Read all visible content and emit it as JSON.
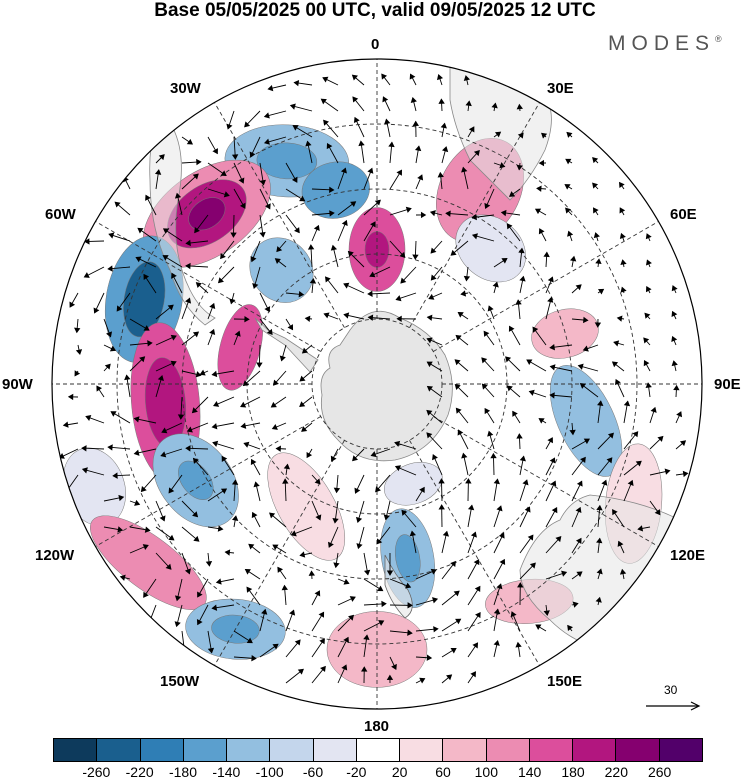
{
  "title": "Base 05/05/2025 00 UTC, valid 09/05/2025 12 UTC",
  "logo": {
    "text": "MODES",
    "mark": "®"
  },
  "longitude_labels": [
    {
      "key": "lon-0",
      "text": "0"
    },
    {
      "key": "lon-30e",
      "text": "30E"
    },
    {
      "key": "lon-60e",
      "text": "60E"
    },
    {
      "key": "lon-90e",
      "text": "90E"
    },
    {
      "key": "lon-120e",
      "text": "120E"
    },
    {
      "key": "lon-150e",
      "text": "150E"
    },
    {
      "key": "lon-180",
      "text": "180"
    },
    {
      "key": "lon-150w",
      "text": "150W"
    },
    {
      "key": "lon-120w",
      "text": "120W"
    },
    {
      "key": "lon-90w",
      "text": "90W"
    },
    {
      "key": "lon-60w",
      "text": "60W"
    },
    {
      "key": "lon-30w",
      "text": "30W"
    }
  ],
  "reference_vector": {
    "label": "30"
  },
  "colorbar": {
    "colors": [
      "#0d3a5c",
      "#1a5f8e",
      "#2f7eb5",
      "#5b9fce",
      "#93bfe0",
      "#c4d6ec",
      "#e3e5f2",
      "#ffffff",
      "#f8dde3",
      "#f4b8c8",
      "#ec8cb2",
      "#dc4e9c",
      "#b2167f",
      "#85006f",
      "#52006a"
    ],
    "ticks": [
      "-260",
      "-220",
      "-180",
      "-140",
      "-100",
      "-60",
      "-20",
      "20",
      "60",
      "100",
      "140",
      "180",
      "220",
      "260"
    ]
  },
  "anomaly_blobs": [
    {
      "lon": -22,
      "colat": 68,
      "rx": 62,
      "ry": 36,
      "rot": 25,
      "v": -120
    },
    {
      "lon": -22,
      "colat": 68,
      "rx": 30,
      "ry": 18,
      "rot": 25,
      "v": -160
    },
    {
      "lon": -12,
      "colat": 56,
      "rx": 34,
      "ry": 28,
      "rot": 0,
      "v": -160
    },
    {
      "lon": -45,
      "colat": 68,
      "rx": 72,
      "ry": 42,
      "rot": 10,
      "v": 100
    },
    {
      "lon": -45,
      "colat": 68,
      "rx": 44,
      "ry": 28,
      "rot": 10,
      "v": 180
    },
    {
      "lon": -45,
      "colat": 68,
      "rx": 20,
      "ry": 14,
      "rot": 10,
      "v": 220
    },
    {
      "lon": -70,
      "colat": 70,
      "rx": 64,
      "ry": 38,
      "rot": -10,
      "v": -180
    },
    {
      "lon": -70,
      "colat": 70,
      "rx": 38,
      "ry": 20,
      "rot": -10,
      "v": -240
    },
    {
      "lon": -40,
      "colat": 42,
      "rx": 30,
      "ry": 34,
      "rot": 0,
      "v": -120
    },
    {
      "lon": 0,
      "colat": 38,
      "rx": 28,
      "ry": 42,
      "rot": 0,
      "v": 140
    },
    {
      "lon": 0,
      "colat": 38,
      "rx": 12,
      "ry": 18,
      "rot": 0,
      "v": 200
    },
    {
      "lon": 28,
      "colat": 62,
      "rx": 40,
      "ry": 55,
      "rot": 0,
      "v": 120
    },
    {
      "lon": 40,
      "colat": 50,
      "rx": 38,
      "ry": 30,
      "rot": 0,
      "v": -60
    },
    {
      "lon": -95,
      "colat": 60,
      "rx": 80,
      "ry": 34,
      "rot": 0,
      "v": 160
    },
    {
      "lon": -95,
      "colat": 60,
      "rx": 45,
      "ry": 20,
      "rot": 0,
      "v": 180
    },
    {
      "lon": -118,
      "colat": 58,
      "rx": 52,
      "ry": 36,
      "rot": -10,
      "v": -140
    },
    {
      "lon": -118,
      "colat": 58,
      "rx": 22,
      "ry": 14,
      "rot": -10,
      "v": -180
    },
    {
      "lon": -110,
      "colat": 85,
      "rx": 40,
      "ry": 30,
      "rot": 0,
      "v": -60
    },
    {
      "lon": -128,
      "colat": 82,
      "rx": 70,
      "ry": 26,
      "rot": -15,
      "v": 100
    },
    {
      "lon": -150,
      "colat": 80,
      "rx": 50,
      "ry": 30,
      "rot": -25,
      "v": -140
    },
    {
      "lon": -150,
      "colat": 80,
      "rx": 24,
      "ry": 14,
      "rot": -25,
      "v": -180
    },
    {
      "lon": 180,
      "colat": 75,
      "rx": 50,
      "ry": 38,
      "rot": 0,
      "v": 80
    },
    {
      "lon": 170,
      "colat": 50,
      "rx": 26,
      "ry": 50,
      "rot": 0,
      "v": -140
    },
    {
      "lon": 170,
      "colat": 50,
      "rx": 12,
      "ry": 24,
      "rot": 0,
      "v": -180
    },
    {
      "lon": 145,
      "colat": 75,
      "rx": 44,
      "ry": 22,
      "rot": 30,
      "v": 80
    },
    {
      "lon": 100,
      "colat": 60,
      "rx": 60,
      "ry": 28,
      "rot": -35,
      "v": -120
    },
    {
      "lon": 75,
      "colat": 55,
      "rx": 24,
      "ry": 34,
      "rot": 0,
      "v": 60
    },
    {
      "lon": 115,
      "colat": 80,
      "rx": 60,
      "ry": 28,
      "rot": -20,
      "v": 40
    },
    {
      "lon": -150,
      "colat": 40,
      "rx": 60,
      "ry": 28,
      "rot": 30,
      "v": 40
    },
    {
      "lon": 160,
      "colat": 30,
      "rx": 30,
      "ry": 20,
      "rot": 0,
      "v": -60
    },
    {
      "lon": -75,
      "colat": 40,
      "rx": 44,
      "ry": 20,
      "rot": 0,
      "v": 140
    }
  ]
}
